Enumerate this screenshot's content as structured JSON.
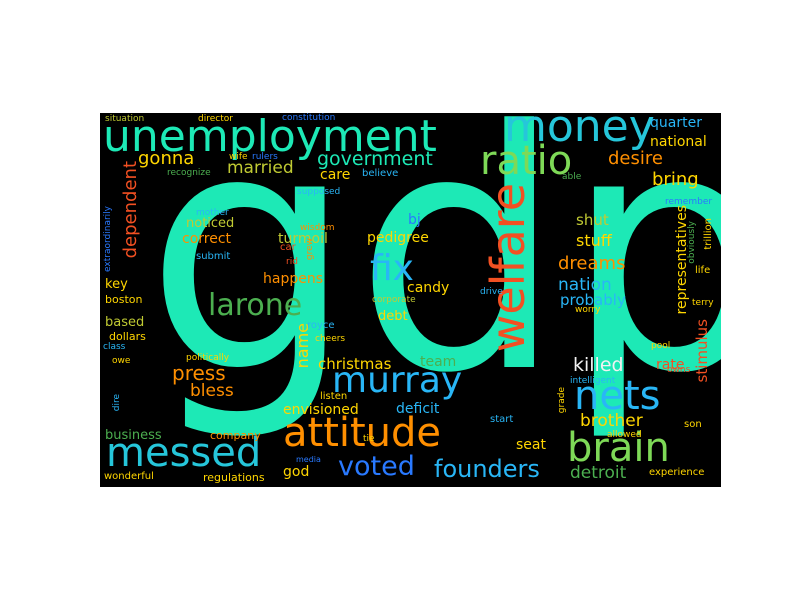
{
  "background": "#000000",
  "words": [
    {
      "t": "gdp",
      "c": "#1de9b6"
    },
    {
      "t": "unemployment",
      "c": "#1de9b6"
    },
    {
      "t": "money",
      "c": "#26c6da"
    },
    {
      "t": "ratio",
      "c": "#7ed957"
    },
    {
      "t": "welfare",
      "c": "#f25022"
    },
    {
      "t": "fix",
      "c": "#29b6f6"
    },
    {
      "t": "larone",
      "c": "#4caf50"
    },
    {
      "t": "murray",
      "c": "#29b6f6"
    },
    {
      "t": "nets",
      "c": "#29b6f6"
    },
    {
      "t": "attitude",
      "c": "#ff8f00"
    },
    {
      "t": "messed",
      "c": "#26c6da"
    },
    {
      "t": "brain",
      "c": "#7ed957"
    },
    {
      "t": "voted",
      "c": "#2979ff"
    },
    {
      "t": "founders",
      "c": "#29b6f6"
    },
    {
      "t": "government",
      "c": "#1de9b6"
    },
    {
      "t": "gonna",
      "c": "#ffd600"
    },
    {
      "t": "married",
      "c": "#c0ca33"
    },
    {
      "t": "care",
      "c": "#ffd600"
    },
    {
      "t": "desire",
      "c": "#ff8f00"
    },
    {
      "t": "bring",
      "c": "#ffd600"
    },
    {
      "t": "quarter",
      "c": "#29b6f6"
    },
    {
      "t": "national",
      "c": "#ffd600"
    },
    {
      "t": "dependent",
      "c": "#f25022"
    },
    {
      "t": "turmoil",
      "c": "#c0ca33"
    },
    {
      "t": "noticed",
      "c": "#c0ca33"
    },
    {
      "t": "correct",
      "c": "#ff8f00"
    },
    {
      "t": "pedigree",
      "c": "#ffd600"
    },
    {
      "t": "bj",
      "c": "#2979ff"
    },
    {
      "t": "shut",
      "c": "#c0ca33"
    },
    {
      "t": "stuff",
      "c": "#ffd600"
    },
    {
      "t": "dreams",
      "c": "#ff8f00"
    },
    {
      "t": "nation",
      "c": "#29b6f6"
    },
    {
      "t": "probably",
      "c": "#29b6f6"
    },
    {
      "t": "candy",
      "c": "#ffd600"
    },
    {
      "t": "debt",
      "c": "#ffd600"
    },
    {
      "t": "happens",
      "c": "#ff8f00"
    },
    {
      "t": "name",
      "c": "#ffd600"
    },
    {
      "t": "christmas",
      "c": "#ffd600"
    },
    {
      "t": "team",
      "c": "#4caf50"
    },
    {
      "t": "press",
      "c": "#ff8f00"
    },
    {
      "t": "bless",
      "c": "#ff8f00"
    },
    {
      "t": "killed",
      "c": "#f2f2f2"
    },
    {
      "t": "rate",
      "c": "#f25022"
    },
    {
      "t": "stimulus",
      "c": "#f25022"
    },
    {
      "t": "representatives",
      "c": "#ffd600"
    },
    {
      "t": "envisioned",
      "c": "#ffd600"
    },
    {
      "t": "deficit",
      "c": "#29b6f6"
    },
    {
      "t": "brother",
      "c": "#ffd600"
    },
    {
      "t": "seat",
      "c": "#ffd600"
    },
    {
      "t": "detroit",
      "c": "#4caf50"
    },
    {
      "t": "business",
      "c": "#4caf50"
    },
    {
      "t": "god",
      "c": "#ffd600"
    },
    {
      "t": "key",
      "c": "#ffd600"
    },
    {
      "t": "boston",
      "c": "#ffd600"
    },
    {
      "t": "based",
      "c": "#c0ca33"
    },
    {
      "t": "dollars",
      "c": "#ffd600"
    },
    {
      "t": "wonderful",
      "c": "#ffd600"
    },
    {
      "t": "regulations",
      "c": "#ffd600"
    },
    {
      "t": "company",
      "c": "#ff8f00"
    },
    {
      "t": "situation",
      "c": "#c0ca33"
    },
    {
      "t": "director",
      "c": "#ffd600"
    },
    {
      "t": "constitution",
      "c": "#2979ff"
    },
    {
      "t": "wife",
      "c": "#ffd600"
    },
    {
      "t": "rulers",
      "c": "#2979ff"
    },
    {
      "t": "recognize",
      "c": "#4caf50"
    },
    {
      "t": "wisdom",
      "c": "#ff8f00"
    },
    {
      "t": "supposed",
      "c": "#29b6f6"
    },
    {
      "t": "believe",
      "c": "#29b6f6"
    },
    {
      "t": "able",
      "c": "#4caf50"
    },
    {
      "t": "remember",
      "c": "#2979ff"
    },
    {
      "t": "mother",
      "c": "#29b6f6"
    },
    {
      "t": "submit",
      "c": "#29b6f6"
    },
    {
      "t": "extraordinarily",
      "c": "#2979ff"
    },
    {
      "t": "car",
      "c": "#f25022"
    },
    {
      "t": "rid",
      "c": "#f25022"
    },
    {
      "t": "grew",
      "c": "#ff8f00"
    },
    {
      "t": "drive",
      "c": "#29b6f6"
    },
    {
      "t": "corporate",
      "c": "#c0ca33"
    },
    {
      "t": "worry",
      "c": "#ffd600"
    },
    {
      "t": "royce",
      "c": "#29b6f6"
    },
    {
      "t": "cheers",
      "c": "#ffd600"
    },
    {
      "t": "politically",
      "c": "#ffd600"
    },
    {
      "t": "class",
      "c": "#29b6f6"
    },
    {
      "t": "owe",
      "c": "#ffd600"
    },
    {
      "t": "pool",
      "c": "#ffd600"
    },
    {
      "t": "owns",
      "c": "#f25022"
    },
    {
      "t": "intelligent",
      "c": "#29b6f6"
    },
    {
      "t": "grade",
      "c": "#ffd600"
    },
    {
      "t": "listen",
      "c": "#ffd600"
    },
    {
      "t": "start",
      "c": "#29b6f6"
    },
    {
      "t": "allowed",
      "c": "#ffd600"
    },
    {
      "t": "son",
      "c": "#ffd600"
    },
    {
      "t": "tie",
      "c": "#ffd600"
    },
    {
      "t": "media",
      "c": "#2979ff"
    },
    {
      "t": "experience",
      "c": "#ffd600"
    },
    {
      "t": "dire",
      "c": "#29b6f6"
    },
    {
      "t": "trillion",
      "c": "#ffd600"
    },
    {
      "t": "obviously",
      "c": "#4caf50"
    },
    {
      "t": "life",
      "c": "#ffd600"
    },
    {
      "t": "terry",
      "c": "#ffd600"
    }
  ]
}
